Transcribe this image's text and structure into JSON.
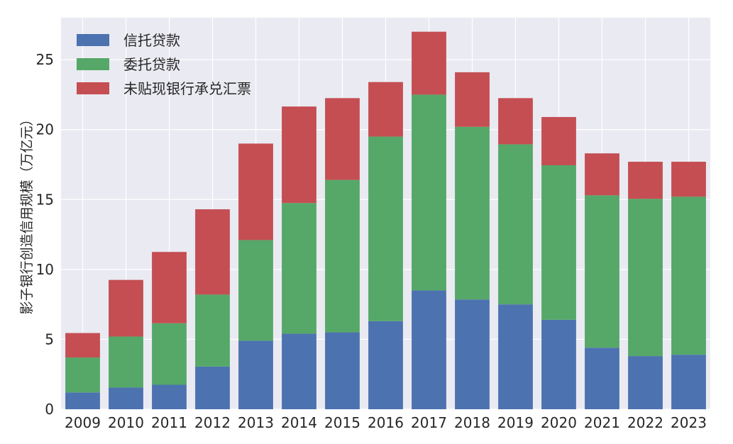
{
  "chart_data": {
    "type": "bar",
    "stacked": true,
    "title": "",
    "xlabel": "",
    "ylabel": "影子银行创造信用规模（万亿元）",
    "categories": [
      "2009",
      "2010",
      "2011",
      "2012",
      "2013",
      "2014",
      "2015",
      "2016",
      "2017",
      "2018",
      "2019",
      "2020",
      "2021",
      "2022",
      "2023"
    ],
    "series": [
      {
        "name": "信托贷款",
        "color": "#4c72b0",
        "values": [
          1.2,
          1.55,
          1.75,
          3.05,
          4.9,
          5.4,
          5.5,
          6.3,
          8.5,
          7.85,
          7.5,
          6.4,
          4.4,
          3.8,
          3.9
        ]
      },
      {
        "name": "委托贷款",
        "color": "#55a868",
        "values": [
          2.5,
          3.65,
          4.4,
          5.15,
          7.2,
          9.35,
          10.9,
          13.2,
          14.0,
          12.35,
          11.45,
          11.05,
          10.9,
          11.25,
          11.3
        ]
      },
      {
        "name": "未贴现银行承兑汇票",
        "color": "#c44e52",
        "values": [
          1.75,
          4.05,
          5.1,
          6.1,
          6.9,
          6.9,
          5.85,
          3.9,
          4.5,
          3.9,
          3.3,
          3.45,
          3.0,
          2.65,
          2.5
        ]
      }
    ],
    "ylim": [
      0,
      28
    ],
    "yticks": [
      "0",
      "5",
      "10",
      "15",
      "20",
      "25"
    ],
    "grid": true,
    "legend_position": "top-left",
    "background_color": "#eaeaf2"
  }
}
